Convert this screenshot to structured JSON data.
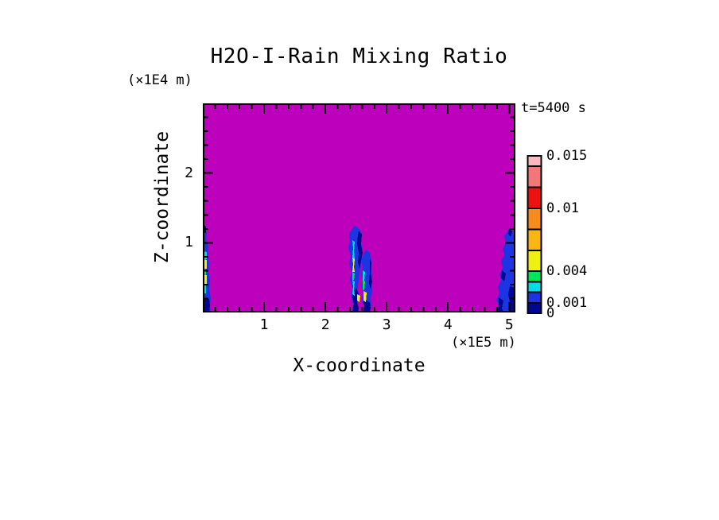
{
  "title": "H2O-I-Rain Mixing Ratio",
  "time_label": "t=5400 s",
  "axes": {
    "x": {
      "label": "X-coordinate",
      "units": "(×1E5 m)",
      "major_ticks": [
        1,
        2,
        3,
        4,
        5
      ],
      "minor_step": 0.2,
      "plot_max": 5.1
    },
    "z": {
      "label": "Z-coordinate",
      "units": "(×1E4 m)",
      "major_ticks": [
        1,
        2
      ],
      "minor_step": 0.2,
      "plot_max": 3.0
    }
  },
  "colorbar": {
    "levels": [
      0,
      0.001,
      0.002,
      0.003,
      0.004,
      0.006,
      0.008,
      0.01,
      0.012,
      0.014,
      0.015
    ],
    "max_level": 0.015,
    "segment_colors_bottom_to_top": [
      "#000890",
      "#1C34E2",
      "#00DCE8",
      "#00E55C",
      "#EFEF10",
      "#F9B514",
      "#F78C1E",
      "#EE1111",
      "#F07878",
      "#FFB6C1"
    ],
    "tick_labels": [
      {
        "text": "0.015",
        "value": 0.015
      },
      {
        "text": "0.01",
        "value": 0.01
      },
      {
        "text": "0.004",
        "value": 0.004
      },
      {
        "text": "0.001",
        "value": 0.001
      },
      {
        "text": "0",
        "value": 0
      }
    ]
  },
  "colors": {
    "page_background": "#FFFFFF",
    "field_background": "#BC00BC",
    "plume_blue": "#1C34E2",
    "plume_navy": "#000890",
    "plume_cyan": "#00DCE8",
    "plume_green": "#00E55C",
    "plume_yellow": "#EFEF10",
    "frame": "#000000"
  },
  "chart_data": {
    "type": "heatmap",
    "title": "H2O-I-Rain Mixing Ratio",
    "annotation": "t=5400 s",
    "xlabel": "X-coordinate",
    "ylabel": "Z-coordinate",
    "x_units_multiplier": "(×1E5 m)",
    "z_units_multiplier": "(×1E4 m)",
    "x_range": [
      0,
      5.1
    ],
    "z_range": [
      0,
      3.0
    ],
    "x_major_ticks": [
      1,
      2,
      3,
      4,
      5
    ],
    "z_major_ticks": [
      1,
      2
    ],
    "minor_tick_step": 0.2,
    "contour_levels": [
      0,
      0.001,
      0.002,
      0.003,
      0.004,
      0.006,
      0.008,
      0.01,
      0.012,
      0.014,
      0.015
    ],
    "labeled_levels": [
      0,
      0.001,
      0.004,
      0.01,
      0.015
    ],
    "background_value": 0,
    "grid": false,
    "legend_position": "right",
    "rain_cells": [
      {
        "x_extent": [
          0.0,
          0.15
        ],
        "z_extent": [
          0.0,
          1.25
        ],
        "peak_mixing_ratio": 0.005,
        "note": "narrow plume hugging left boundary with cyan/yellow core"
      },
      {
        "x_extent": [
          2.38,
          2.58
        ],
        "z_extent": [
          0.0,
          1.23
        ],
        "peak_mixing_ratio": 0.005,
        "note": "tall narrow plume, cyan-green-yellow core streak"
      },
      {
        "x_extent": [
          2.58,
          2.76
        ],
        "z_extent": [
          0.0,
          0.95
        ],
        "peak_mixing_ratio": 0.005,
        "note": "second narrow plume with bright core streak"
      },
      {
        "x_extent": [
          4.85,
          5.1
        ],
        "z_extent": [
          0.0,
          1.2
        ],
        "peak_mixing_ratio": 0.002,
        "note": "plume on right boundary, mostly dark blue"
      }
    ]
  }
}
